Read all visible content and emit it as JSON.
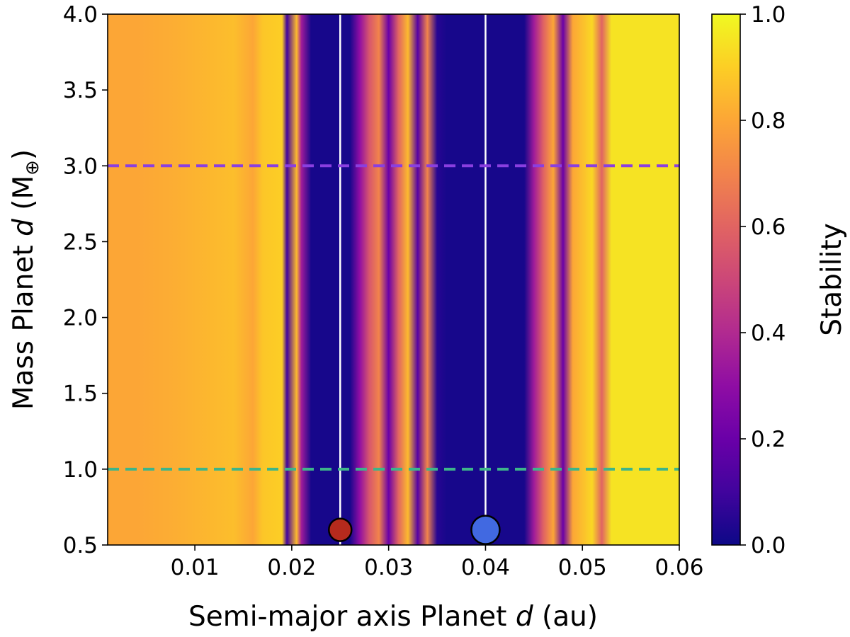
{
  "chart_data": {
    "type": "heatmap",
    "xlabel": {
      "prefix": "Semi-major axis Planet ",
      "italic": "d",
      "suffix": " (au)"
    },
    "ylabel": {
      "prefix": "Mass Planet ",
      "italic": "d",
      "suffix": " (M",
      "sub": "⊕",
      "close": ")"
    },
    "colorbar_label": "Stability",
    "colormap": "plasma",
    "xlim": [
      0.001,
      0.06
    ],
    "ylim": [
      0.5,
      4.0
    ],
    "zlim": [
      0.0,
      1.0
    ],
    "x_ticks": [
      "0.01",
      "0.02",
      "0.03",
      "0.04",
      "0.05",
      "0.06"
    ],
    "y_ticks": [
      "0.5",
      "1.0",
      "1.5",
      "2.0",
      "2.5",
      "3.0",
      "3.5",
      "4.0"
    ],
    "colorbar_ticks": [
      "0.0",
      "0.2",
      "0.4",
      "0.6",
      "0.8",
      "1.0"
    ],
    "stability_profile": [
      {
        "a": 0.001,
        "s": 0.8
      },
      {
        "a": 0.004,
        "s": 0.8
      },
      {
        "a": 0.008,
        "s": 0.82
      },
      {
        "a": 0.011,
        "s": 0.84
      },
      {
        "a": 0.014,
        "s": 0.86
      },
      {
        "a": 0.016,
        "s": 0.8
      },
      {
        "a": 0.017,
        "s": 0.88
      },
      {
        "a": 0.019,
        "s": 0.9
      },
      {
        "a": 0.0195,
        "s": 0.1
      },
      {
        "a": 0.0205,
        "s": 0.85
      },
      {
        "a": 0.021,
        "s": 0.35
      },
      {
        "a": 0.022,
        "s": 0.02
      },
      {
        "a": 0.026,
        "s": 0.02
      },
      {
        "a": 0.027,
        "s": 0.3
      },
      {
        "a": 0.028,
        "s": 0.55
      },
      {
        "a": 0.029,
        "s": 0.7
      },
      {
        "a": 0.03,
        "s": 0.2
      },
      {
        "a": 0.031,
        "s": 0.6
      },
      {
        "a": 0.032,
        "s": 0.85
      },
      {
        "a": 0.033,
        "s": 0.15
      },
      {
        "a": 0.034,
        "s": 0.7
      },
      {
        "a": 0.035,
        "s": 0.05
      },
      {
        "a": 0.036,
        "s": 0.02
      },
      {
        "a": 0.044,
        "s": 0.02
      },
      {
        "a": 0.045,
        "s": 0.35
      },
      {
        "a": 0.046,
        "s": 0.6
      },
      {
        "a": 0.047,
        "s": 0.8
      },
      {
        "a": 0.048,
        "s": 0.2
      },
      {
        "a": 0.049,
        "s": 0.8
      },
      {
        "a": 0.051,
        "s": 0.92
      },
      {
        "a": 0.052,
        "s": 0.6
      },
      {
        "a": 0.053,
        "s": 0.95
      },
      {
        "a": 0.06,
        "s": 0.95
      }
    ],
    "vertical_lines": [
      {
        "x": 0.025,
        "color": "#ffffff"
      },
      {
        "x": 0.04,
        "color": "#ffffff"
      }
    ],
    "horizontal_lines": [
      {
        "y": 3.0,
        "color": "#8a3fe0",
        "style": "dashed"
      },
      {
        "y": 1.0,
        "color": "#3db58a",
        "style": "dashed"
      }
    ],
    "markers": [
      {
        "x": 0.025,
        "y": 0.6,
        "color": "#b52a1d",
        "size": "small"
      },
      {
        "x": 0.04,
        "y": 0.6,
        "color": "#4169e1",
        "size": "large"
      }
    ]
  }
}
